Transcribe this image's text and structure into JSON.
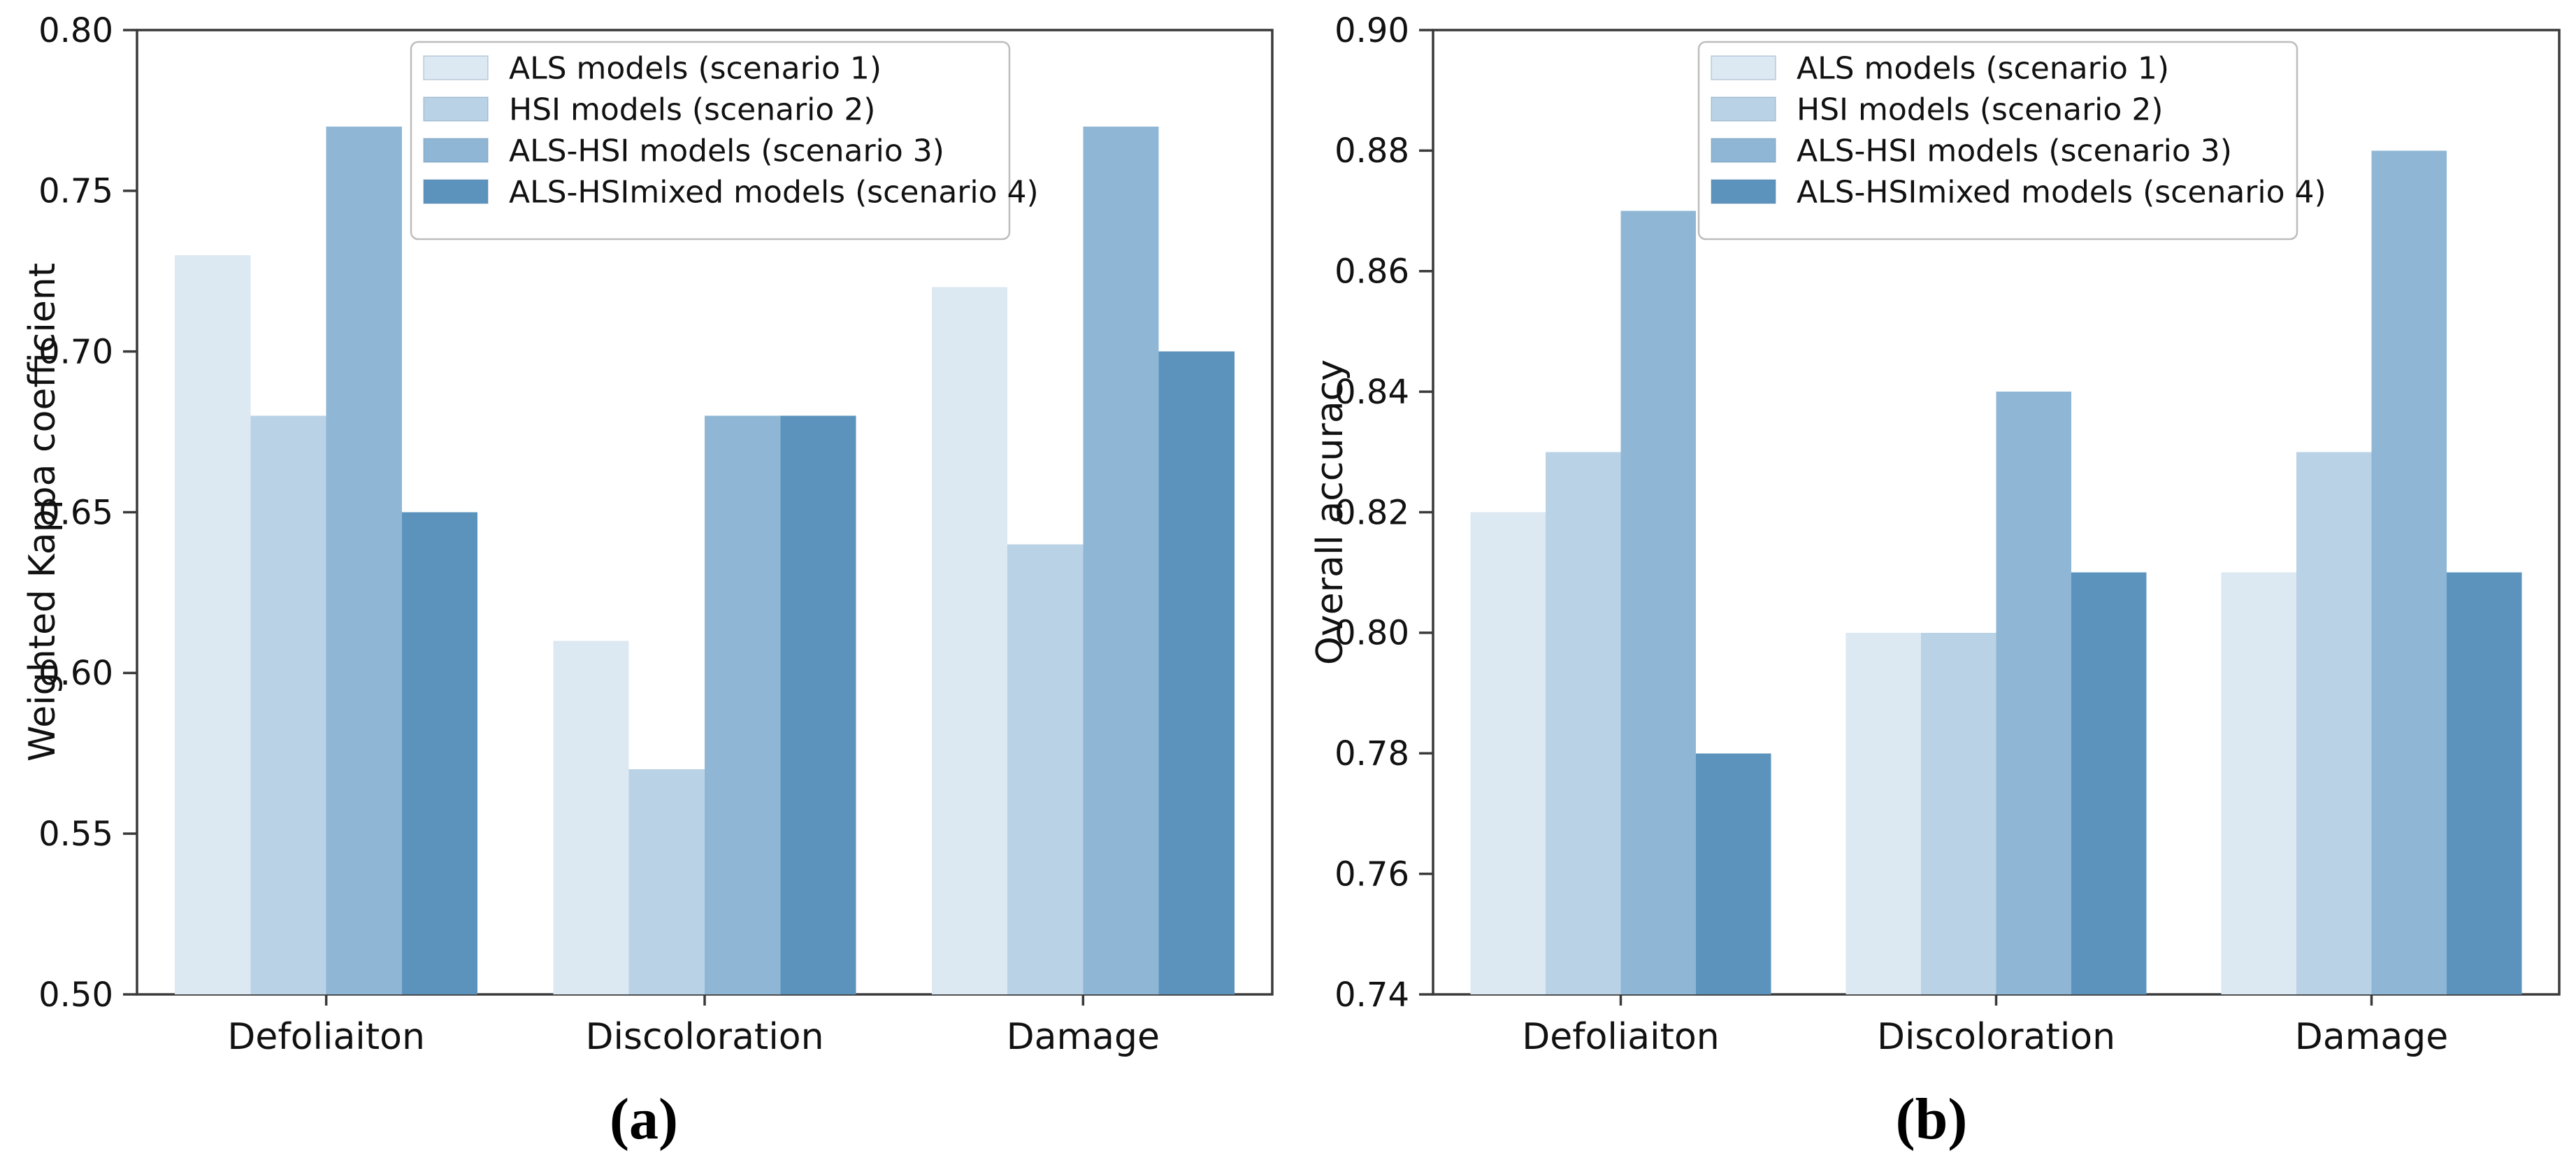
{
  "figure": {
    "background": "#ffffff",
    "caption_a": "(a)",
    "caption_b": "(b)"
  },
  "colors": {
    "series": [
      "#dce8f2",
      "#bad2e6",
      "#8fb7d5",
      "#5c93bd"
    ],
    "spine": "#3a3a3a",
    "text": "#111111",
    "legend_border": "#bdbdbd",
    "legend_background": "#ffffff"
  },
  "legend": {
    "items": [
      {
        "label": "ALS models (scenario 1)",
        "swatch": "scenario-1-swatch"
      },
      {
        "label": "HSI models (scenario 2)",
        "swatch": "scenario-2-swatch"
      },
      {
        "label": "ALS-HSI models (scenario 3)",
        "swatch": "scenario-3-swatch"
      },
      {
        "label": "ALS-HSImixed models (scenario 4)",
        "swatch": "scenario-4-swatch"
      }
    ],
    "position": "upper center"
  },
  "chart_data": [
    {
      "id": "a",
      "type": "bar",
      "title": "",
      "xlabel": "",
      "ylabel": "Weighted Kappa coefficient",
      "categories": [
        "Defoliaiton",
        "Discoloration",
        "Damage"
      ],
      "series": [
        {
          "name": "ALS models (scenario 1)",
          "values": [
            0.73,
            0.61,
            0.72
          ]
        },
        {
          "name": "HSI models (scenario 2)",
          "values": [
            0.68,
            0.57,
            0.64
          ]
        },
        {
          "name": "ALS-HSI models (scenario 3)",
          "values": [
            0.77,
            0.68,
            0.77
          ]
        },
        {
          "name": "ALS-HSImixed models (scenario 4)",
          "values": [
            0.65,
            0.68,
            0.7
          ]
        }
      ],
      "ylim": [
        0.5,
        0.8
      ],
      "ytick_step": 0.05,
      "yticks": [
        "0.80",
        "0.75",
        "0.70",
        "0.65",
        "0.60",
        "0.55",
        "0.50"
      ],
      "grid": false,
      "legend_position": "upper center",
      "caption": "(a)"
    },
    {
      "id": "b",
      "type": "bar",
      "title": "",
      "xlabel": "",
      "ylabel": "Overall accuracy",
      "categories": [
        "Defoliaiton",
        "Discoloration",
        "Damage"
      ],
      "series": [
        {
          "name": "ALS models (scenario 1)",
          "values": [
            0.82,
            0.8,
            0.81
          ]
        },
        {
          "name": "HSI models (scenario 2)",
          "values": [
            0.83,
            0.8,
            0.83
          ]
        },
        {
          "name": "ALS-HSI models (scenario 3)",
          "values": [
            0.87,
            0.84,
            0.88
          ]
        },
        {
          "name": "ALS-HSImixed models (scenario 4)",
          "values": [
            0.78,
            0.81,
            0.81
          ]
        }
      ],
      "ylim": [
        0.74,
        0.9
      ],
      "ytick_step": 0.02,
      "yticks": [
        "0.90",
        "0.88",
        "0.86",
        "0.84",
        "0.82",
        "0.80",
        "0.78",
        "0.76",
        "0.74"
      ],
      "grid": false,
      "legend_position": "upper center",
      "caption": "(b)"
    }
  ]
}
